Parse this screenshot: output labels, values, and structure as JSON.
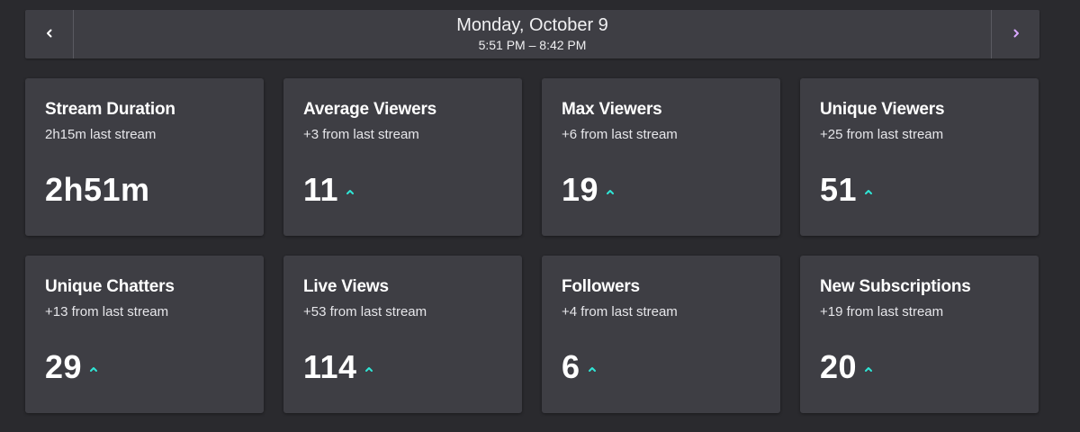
{
  "date_nav": {
    "title": "Monday, October 9",
    "time_range": "5:51 PM – 8:42 PM",
    "prev_icon": "chevron-left-icon",
    "next_icon": "chevron-right-icon"
  },
  "colors": {
    "background": "#2a2a2e",
    "card": "#3e3e44",
    "up_arrow": "#2fe6d6",
    "next_chevron": "#d9a8ff"
  },
  "cards": [
    {
      "title": "Stream Duration",
      "subtitle": "2h15m last stream",
      "value": "2h51m",
      "trend": "none"
    },
    {
      "title": "Average Viewers",
      "subtitle": "+3 from last stream",
      "value": "11",
      "trend": "up"
    },
    {
      "title": "Max Viewers",
      "subtitle": "+6 from last stream",
      "value": "19",
      "trend": "up"
    },
    {
      "title": "Unique Viewers",
      "subtitle": "+25 from last stream",
      "value": "51",
      "trend": "up"
    },
    {
      "title": "Unique Chatters",
      "subtitle": "+13 from last stream",
      "value": "29",
      "trend": "up"
    },
    {
      "title": "Live Views",
      "subtitle": "+53 from last stream",
      "value": "114",
      "trend": "up"
    },
    {
      "title": "Followers",
      "subtitle": "+4 from last stream",
      "value": "6",
      "trend": "up"
    },
    {
      "title": "New Subscriptions",
      "subtitle": "+19 from last stream",
      "value": "20",
      "trend": "up"
    }
  ]
}
